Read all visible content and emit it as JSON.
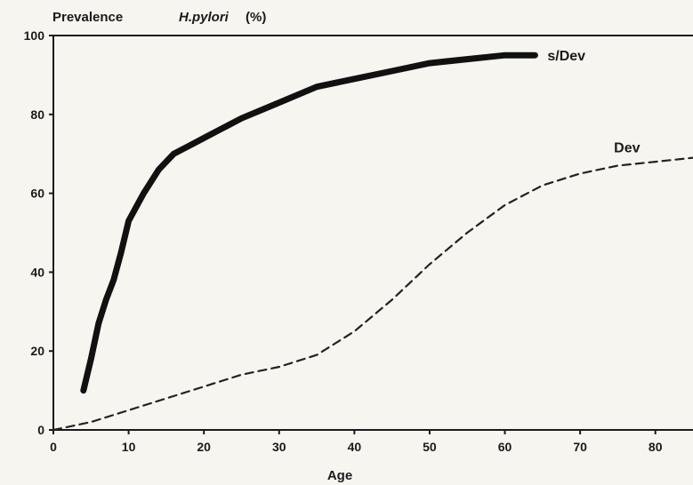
{
  "chart_data": {
    "type": "line",
    "title_prefix": "Prevalence",
    "title_italic": "H.pylori",
    "title_suffix": "(%)",
    "xlabel": "Age",
    "ylabel": "",
    "xlim": [
      0,
      85
    ],
    "ylim": [
      0,
      100
    ],
    "xticks": [
      0,
      10,
      20,
      30,
      40,
      50,
      60,
      70,
      80
    ],
    "yticks": [
      0,
      20,
      40,
      60,
      80,
      100
    ],
    "grid": false,
    "series": [
      {
        "name": "s/Dev",
        "style": "solid",
        "color": "#111111",
        "x": [
          4,
          5,
          6,
          7,
          8,
          9,
          10,
          12,
          14,
          16,
          18,
          20,
          25,
          30,
          35,
          40,
          45,
          50,
          55,
          60,
          64
        ],
        "y": [
          10,
          18,
          27,
          33,
          38,
          45,
          53,
          60,
          66,
          70,
          72,
          74,
          79,
          83,
          87,
          89,
          91,
          93,
          94,
          95,
          95
        ]
      },
      {
        "name": "Dev",
        "style": "dashed",
        "color": "#222222",
        "x": [
          0,
          5,
          10,
          15,
          20,
          25,
          30,
          35,
          40,
          45,
          50,
          55,
          60,
          65,
          70,
          75,
          80,
          85
        ],
        "y": [
          0,
          2,
          5,
          8,
          11,
          14,
          16,
          19,
          25,
          33,
          42,
          50,
          57,
          62,
          65,
          67,
          68,
          69
        ]
      }
    ]
  }
}
